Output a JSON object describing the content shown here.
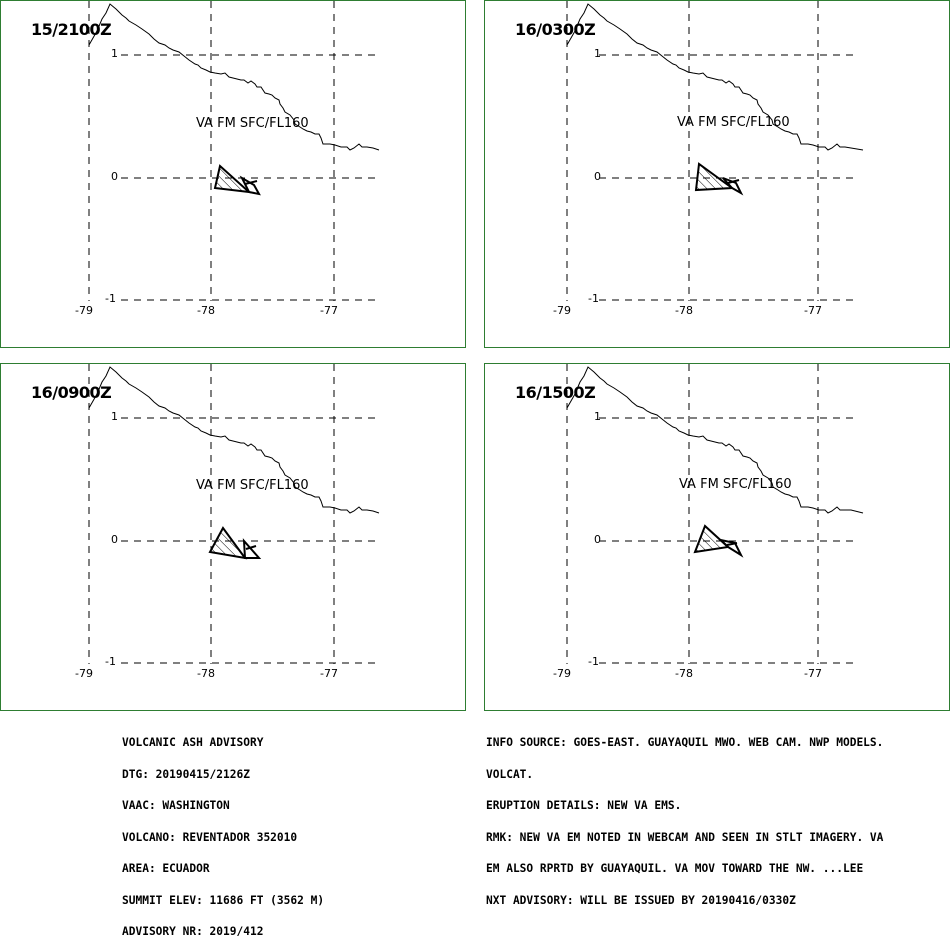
{
  "panels": [
    {
      "time": "15/2100Z",
      "label": "VA FM SFC/FL160"
    },
    {
      "time": "16/0300Z",
      "label": "VA FM SFC/FL160"
    },
    {
      "time": "16/0900Z",
      "label": "VA FM SFC/FL160"
    },
    {
      "time": "16/1500Z",
      "label": "VA FM SFC/FL160"
    }
  ],
  "axes": {
    "lat_labels": [
      "1",
      "0",
      "-1"
    ],
    "lon_labels": [
      "-79",
      "-78",
      "-77"
    ]
  },
  "colors": {
    "panel_border": "#2e7d32",
    "lines": "#000000"
  },
  "advisory": {
    "left_lines": [
      "VOLCANIC ASH ADVISORY",
      "DTG: 20190415/2126Z",
      "VAAC: WASHINGTON",
      "VOLCANO: REVENTADOR 352010",
      "AREA: ECUADOR",
      "SUMMIT ELEV: 11686 FT (3562 M)",
      "ADVISORY NR: 2019/412"
    ],
    "right_lines": [
      "INFO SOURCE: GOES-EAST. GUAYAQUIL MWO. WEB CAM. NWP MODELS.",
      "VOLCAT.",
      "ERUPTION DETAILS: NEW VA EMS.",
      "RMK: NEW VA EM NOTED IN WEBCAM AND SEEN IN STLT IMAGERY. VA",
      "EM ALSO RPRTD BY GUAYAQUIL. VA MOV TOWARD THE NW. ...LEE",
      "NXT ADVISORY: WILL BE ISSUED BY 20190416/0330Z"
    ]
  }
}
